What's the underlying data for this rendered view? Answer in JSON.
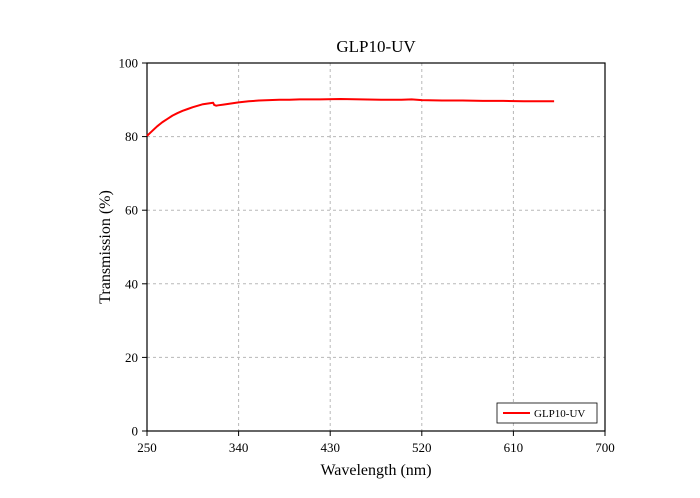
{
  "chart_data": {
    "type": "line",
    "title": "GLP10-UV",
    "xlabel": "Wavelength (nm)",
    "ylabel": "Transmission (%)",
    "xlim": [
      250,
      700
    ],
    "ylim": [
      0,
      100
    ],
    "x_ticks": [
      250,
      340,
      430,
      520,
      610,
      700
    ],
    "y_ticks": [
      0,
      20,
      40,
      60,
      80,
      100
    ],
    "grid": true,
    "legend_position": "bottom-right",
    "series": [
      {
        "name": "GLP10-UV",
        "color": "#ff0000",
        "x": [
          250,
          255,
          260,
          265,
          270,
          275,
          280,
          285,
          290,
          295,
          300,
          305,
          310,
          315,
          316,
          318,
          320,
          325,
          330,
          335,
          340,
          350,
          360,
          370,
          380,
          390,
          400,
          420,
          440,
          460,
          480,
          500,
          510,
          520,
          540,
          560,
          580,
          600,
          620,
          640,
          650
        ],
        "y": [
          80.2,
          81.5,
          82.8,
          83.9,
          84.8,
          85.7,
          86.4,
          87.0,
          87.5,
          88.0,
          88.4,
          88.8,
          89.0,
          89.2,
          88.6,
          88.4,
          88.5,
          88.7,
          88.9,
          89.1,
          89.3,
          89.6,
          89.8,
          89.9,
          90.0,
          90.0,
          90.1,
          90.1,
          90.2,
          90.1,
          90.0,
          90.0,
          90.1,
          89.9,
          89.8,
          89.8,
          89.7,
          89.7,
          89.6,
          89.6,
          89.6
        ]
      }
    ]
  }
}
